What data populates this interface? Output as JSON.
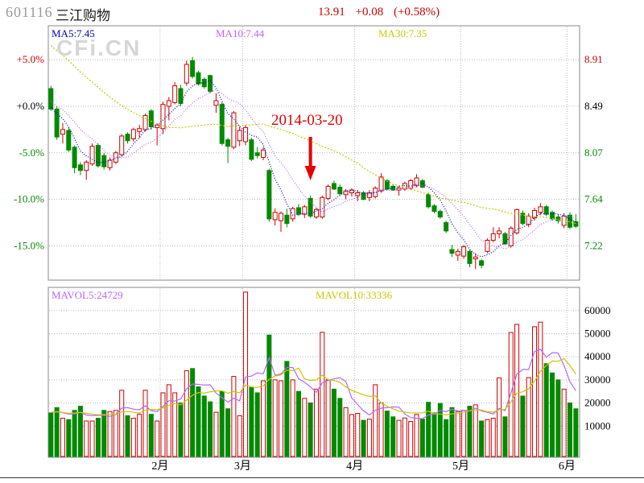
{
  "header": {
    "stock_code": "601116",
    "stock_name": "三江购物",
    "price": "13.91",
    "change": "+0.08",
    "change_pct": "(+0.58%)",
    "quote_color": "#cc0000"
  },
  "watermark": "CFi.CN",
  "price_pane": {
    "ma5_label": {
      "text": "MA5:7.45",
      "color": "#0000cc"
    },
    "ma10_label": {
      "text": "MA10:7.44",
      "color": "#b964ff"
    },
    "ma30_label": {
      "text": "MA30:7.35",
      "color": "#c8c800"
    }
  },
  "volume_pane": {
    "mavol5_label": {
      "text": "MAVOL5:24729",
      "color": "#b964ff"
    },
    "mavol10_label": {
      "text": "MAVOL10:33336",
      "color": "#c8c800"
    }
  },
  "chart_data": {
    "type": "candlestick+volume",
    "title": "601116 三江购物 daily chart, Jan–Jun 2014",
    "baseline_price": 8.49,
    "left_axis": [
      {
        "label": "+5.0%",
        "pct": 5,
        "color": "#cc0000"
      },
      {
        "label": "+0.0%",
        "pct": 0,
        "color": "#000000"
      },
      {
        "label": "-5.0%",
        "pct": -5,
        "color": "#008800"
      },
      {
        "label": "-10.0%",
        "pct": -10,
        "color": "#008800"
      },
      {
        "label": "-15.0%",
        "pct": -15,
        "color": "#008800"
      }
    ],
    "right_axis": [
      {
        "label": "8.91",
        "price": 8.91,
        "color": "#cc0000"
      },
      {
        "label": "8.49",
        "price": 8.49,
        "color": "#000000"
      },
      {
        "label": "8.07",
        "price": 8.07,
        "color": "#008800"
      },
      {
        "label": "7.64",
        "price": 7.64,
        "color": "#008800"
      },
      {
        "label": "7.22",
        "price": 7.22,
        "color": "#008800"
      }
    ],
    "volume_axis": [
      60000,
      50000,
      40000,
      30000,
      20000,
      10000
    ],
    "months": [
      {
        "label": "2月",
        "boundary_index": 19.5
      },
      {
        "label": "3月",
        "boundary_index": 33.5
      },
      {
        "label": "4月",
        "boundary_index": 52.5
      },
      {
        "label": "5月",
        "boundary_index": 70.5
      },
      {
        "label": "6月",
        "boundary_index": 88.5
      }
    ],
    "annotation": {
      "text": "2014-03-20",
      "candle_index": 45,
      "color": "#e60000"
    },
    "ma_periods": [
      5,
      10,
      30
    ],
    "mavol_periods": [
      5,
      10
    ],
    "candles_pct": [
      [
        1.9,
        2.2,
        -0.5,
        -0.3
      ],
      [
        -0.3,
        0.0,
        -3.6,
        -3.3
      ],
      [
        -3.0,
        -1.8,
        -4.0,
        -2.5
      ],
      [
        -2.6,
        -2.3,
        -4.9,
        -4.7
      ],
      [
        -4.4,
        -4.2,
        -7.2,
        -6.6
      ],
      [
        -6.3,
        -6.0,
        -7.4,
        -6.9
      ],
      [
        -6.9,
        -5.8,
        -7.9,
        -6.0
      ],
      [
        -6.2,
        -4.0,
        -6.4,
        -4.3
      ],
      [
        -4.2,
        -4.0,
        -6.6,
        -6.4
      ],
      [
        -5.3,
        -5.0,
        -6.8,
        -6.5
      ],
      [
        -6.6,
        -5.5,
        -6.9,
        -5.8
      ],
      [
        -6.0,
        -4.8,
        -6.2,
        -5.0
      ],
      [
        -5.2,
        -3.0,
        -5.4,
        -3.2
      ],
      [
        -3.0,
        -2.8,
        -4.0,
        -3.7
      ],
      [
        -3.5,
        -2.3,
        -3.8,
        -2.5
      ],
      [
        -2.7,
        -2.0,
        -3.4,
        -2.4
      ],
      [
        -2.5,
        -0.8,
        -2.7,
        -1.0
      ],
      [
        -0.5,
        -0.3,
        -2.5,
        -2.2
      ],
      [
        -2.3,
        -1.8,
        -4.2,
        -2.0
      ],
      [
        -2.4,
        0.5,
        -3.0,
        0.2
      ],
      [
        0.0,
        1.0,
        -1.5,
        0.6
      ],
      [
        0.4,
        2.6,
        0.2,
        2.2
      ],
      [
        1.9,
        2.3,
        0.0,
        0.3
      ],
      [
        2.5,
        4.9,
        2.2,
        4.5
      ],
      [
        4.9,
        5.3,
        3.0,
        3.2
      ],
      [
        3.6,
        3.8,
        2.2,
        2.4
      ],
      [
        2.9,
        3.1,
        1.9,
        2.1
      ],
      [
        3.3,
        3.4,
        1.4,
        1.6
      ],
      [
        0.1,
        1.4,
        -0.7,
        0.6
      ],
      [
        0.2,
        0.4,
        -4.2,
        -4.0
      ],
      [
        -3.6,
        -3.4,
        -6.1,
        -4.3
      ],
      [
        -4.4,
        -0.5,
        -4.6,
        -0.7
      ],
      [
        -3.7,
        -2.2,
        -4.3,
        -2.6
      ],
      [
        -3.8,
        -2.0,
        -4.2,
        -2.3
      ],
      [
        -3.6,
        -3.4,
        -5.9,
        -5.7
      ],
      [
        -5.0,
        -4.4,
        -5.6,
        -5.3
      ],
      [
        -5.5,
        -4.4,
        -5.8,
        -4.7
      ],
      [
        -6.9,
        -6.7,
        -12.4,
        -12.1
      ],
      [
        -12.2,
        -11.0,
        -12.8,
        -11.4
      ],
      [
        -12.3,
        -11.3,
        -13.5,
        -11.5
      ],
      [
        -11.7,
        -11.0,
        -13.0,
        -12.6
      ],
      [
        -12.1,
        -10.8,
        -12.4,
        -11.0
      ],
      [
        -10.9,
        -10.5,
        -11.8,
        -11.6
      ],
      [
        -11.6,
        -10.6,
        -12.0,
        -10.8
      ],
      [
        -9.9,
        -9.6,
        -12.0,
        -11.8
      ],
      [
        -11.9,
        -10.9,
        -12.1,
        -11.1
      ],
      [
        -11.9,
        -9.6,
        -12.1,
        -9.8
      ],
      [
        -9.9,
        -8.4,
        -10.1,
        -8.6
      ],
      [
        -8.3,
        -8.0,
        -9.0,
        -8.9
      ],
      [
        -8.7,
        -8.4,
        -9.6,
        -9.4
      ],
      [
        -9.5,
        -8.9,
        -10.0,
        -9.1
      ],
      [
        -9.3,
        -8.8,
        -9.7,
        -9.0
      ],
      [
        -9.6,
        -9.0,
        -10.2,
        -9.3
      ],
      [
        -9.3,
        -9.1,
        -10.1,
        -10.0
      ],
      [
        -9.8,
        -9.0,
        -10.2,
        -9.3
      ],
      [
        -9.7,
        -8.6,
        -9.9,
        -8.8
      ],
      [
        -9.1,
        -7.2,
        -9.3,
        -7.6
      ],
      [
        -8.0,
        -7.8,
        -9.0,
        -8.9
      ],
      [
        -8.6,
        -8.4,
        -9.1,
        -9.0
      ],
      [
        -9.0,
        -8.5,
        -9.6,
        -8.8
      ],
      [
        -8.9,
        -8.1,
        -9.1,
        -8.3
      ],
      [
        -8.8,
        -7.8,
        -9.0,
        -8.0
      ],
      [
        -8.5,
        -7.3,
        -8.7,
        -7.7
      ],
      [
        -8.0,
        -7.8,
        -8.8,
        -8.7
      ],
      [
        -9.5,
        -9.3,
        -11.0,
        -10.8
      ],
      [
        -10.7,
        -10.5,
        -11.5,
        -11.3
      ],
      [
        -11.3,
        -11.1,
        -12.1,
        -11.9
      ],
      [
        -12.5,
        -12.3,
        -13.6,
        -13.4
      ],
      [
        -15.4,
        -14.9,
        -16.2,
        -15.8
      ],
      [
        -16.0,
        -15.3,
        -16.6,
        -15.6
      ],
      [
        -16.1,
        -14.9,
        -16.4,
        -15.1
      ],
      [
        -15.6,
        -15.4,
        -17.3,
        -16.9
      ],
      [
        -16.4,
        -15.8,
        -17.5,
        -16.2
      ],
      [
        -16.6,
        -16.4,
        -17.4,
        -17.1
      ],
      [
        -15.6,
        -14.2,
        -15.8,
        -14.4
      ],
      [
        -14.4,
        -13.0,
        -14.6,
        -13.7
      ],
      [
        -13.7,
        -13.0,
        -14.2,
        -13.4
      ],
      [
        -13.7,
        -13.5,
        -14.9,
        -14.8
      ],
      [
        -15.0,
        -12.9,
        -15.2,
        -13.1
      ],
      [
        -13.6,
        -11.0,
        -13.8,
        -11.1
      ],
      [
        -11.5,
        -11.2,
        -12.8,
        -12.6
      ],
      [
        -12.7,
        -11.5,
        -13.0,
        -11.8
      ],
      [
        -12.0,
        -10.9,
        -12.3,
        -11.2
      ],
      [
        -11.4,
        -10.4,
        -11.7,
        -10.8
      ],
      [
        -10.8,
        -10.6,
        -11.8,
        -11.6
      ],
      [
        -11.4,
        -11.2,
        -12.3,
        -12.1
      ],
      [
        -11.9,
        -11.6,
        -12.6,
        -12.3
      ],
      [
        -12.8,
        -11.5,
        -13.1,
        -11.8
      ],
      [
        -11.7,
        -11.4,
        -13.2,
        -13.0
      ],
      [
        -12.4,
        -11.6,
        -13.1,
        -12.9
      ]
    ],
    "volumes": [
      15700,
      18000,
      13400,
      12800,
      16800,
      18600,
      12200,
      12200,
      13400,
      16800,
      16300,
      16800,
      25500,
      14500,
      13400,
      15100,
      25500,
      15100,
      12200,
      24400,
      27900,
      24400,
      20000,
      34000,
      34900,
      27000,
      23000,
      20500,
      16000,
      25000,
      17500,
      31500,
      14500,
      68000,
      26700,
      24400,
      29600,
      49400,
      30000,
      29600,
      38000,
      30000,
      25000,
      22000,
      20000,
      26000,
      50600,
      30000,
      26000,
      22000,
      18000,
      15000,
      15500,
      12500,
      13000,
      27900,
      20000,
      16500,
      14000,
      12500,
      13500,
      12000,
      15000,
      13000,
      20300,
      15700,
      19800,
      12800,
      18000,
      16300,
      16800,
      18600,
      19200,
      12200,
      12800,
      13400,
      30900,
      14000,
      50500,
      54000,
      23000,
      31000,
      53000,
      55000,
      37000,
      33000,
      30000,
      26000,
      20000,
      17500
    ],
    "prehistory_closes_pct": [
      13,
      12.6,
      12.3,
      11.9,
      11.5,
      11.2,
      10.8,
      10.4,
      10.1,
      9.7,
      9.3,
      9,
      8.6,
      8.2,
      7.8,
      7.5,
      7.1,
      6.7,
      6.4,
      6,
      2,
      1.5,
      1.2,
      0.8,
      0.5,
      0.2,
      0,
      -0.2,
      -0.3
    ],
    "prehistory_volumes": [
      16000,
      16000,
      16000,
      16000,
      16000,
      16000,
      16000,
      16000,
      16000
    ],
    "colors": {
      "up_candle": "#cc0000",
      "down_candle": "#008a00",
      "ma5": "#0000cc",
      "ma10": "#b964ff",
      "ma30": "#c8c800",
      "mavol5": "#b964ff",
      "mavol10": "#c8c800",
      "grid": "#b8b8b8",
      "border": "#888888"
    }
  }
}
